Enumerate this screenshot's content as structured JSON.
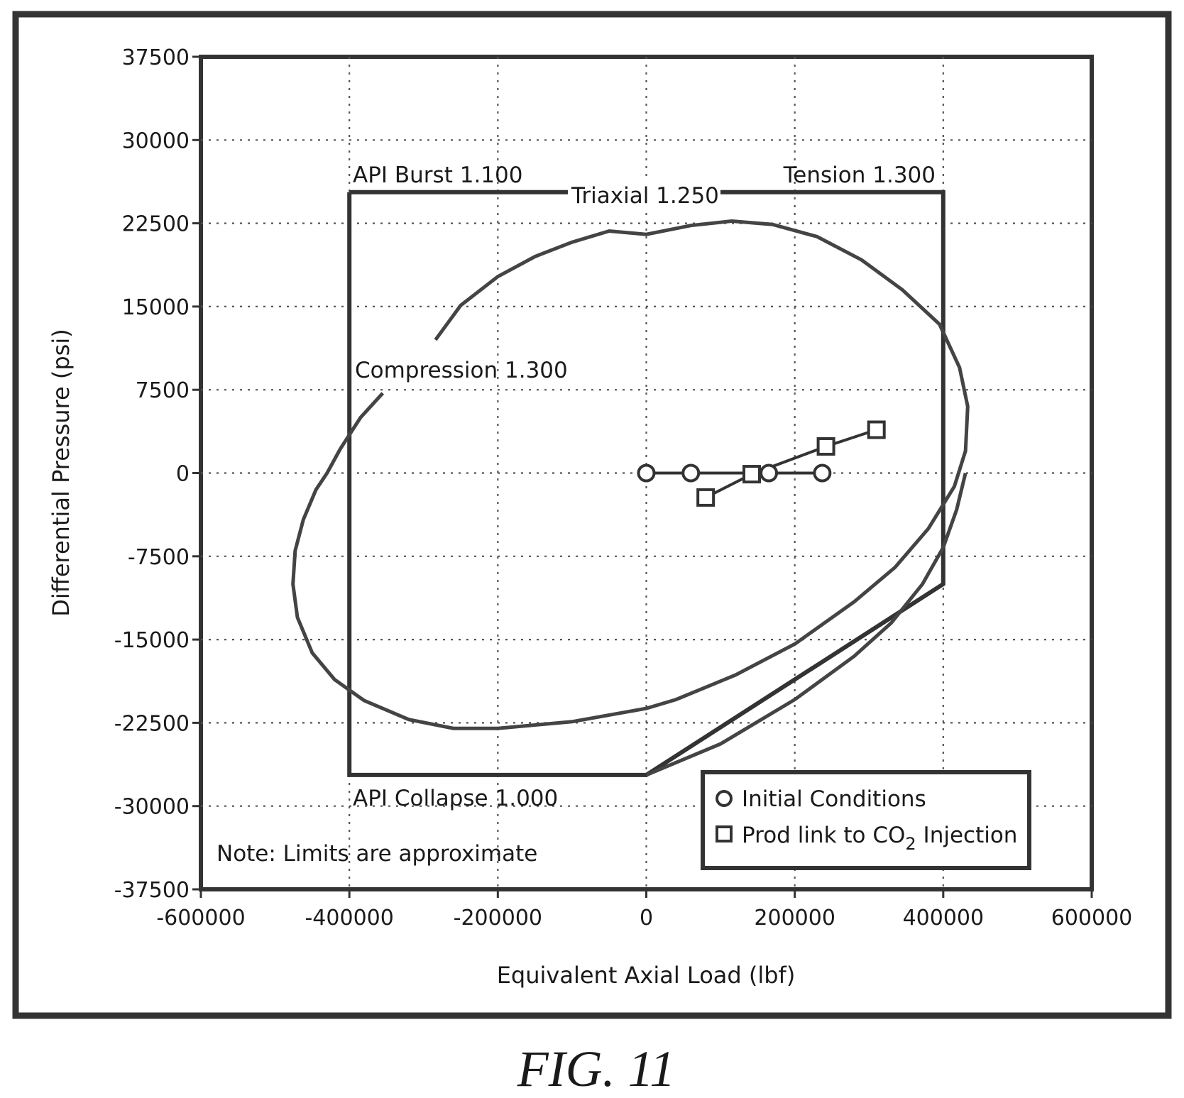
{
  "figure_label": "FIG. 11",
  "chart_data": {
    "type": "line",
    "xlabel": "Equivalent Axial Load (lbf)",
    "ylabel": "Differential Pressure (psi)",
    "xlim": [
      -600000,
      600000
    ],
    "ylim": [
      -37500,
      37500
    ],
    "xticks": [
      -600000,
      -400000,
      -200000,
      0,
      200000,
      400000,
      600000
    ],
    "yticks": [
      37500,
      30000,
      22500,
      15000,
      7500,
      0,
      -7500,
      -15000,
      -22500,
      -30000,
      -37500
    ],
    "grid": true,
    "note": "Note: Limits are approximate",
    "limit_labels": {
      "burst": "API Burst 1.100",
      "triaxial": "Triaxial 1.250",
      "tension": "Tension 1.300",
      "compression": "Compression 1.300",
      "collapse": "API Collapse 1.000"
    },
    "api_envelope": [
      [
        -400000,
        25300
      ],
      [
        400000,
        25300
      ],
      [
        400000,
        -10000
      ],
      [
        0,
        -27200
      ],
      [
        -400000,
        -27200
      ],
      [
        -400000,
        25300
      ]
    ],
    "triaxial_ellipse": [
      [
        -284000,
        12000
      ],
      [
        -250000,
        15100
      ],
      [
        -200000,
        17700
      ],
      [
        -150000,
        19500
      ],
      [
        -100000,
        20800
      ],
      [
        -50000,
        21800
      ],
      [
        0,
        21500
      ],
      [
        60000,
        22300
      ],
      [
        115000,
        22700
      ],
      [
        170000,
        22400
      ],
      [
        230000,
        21300
      ],
      [
        290000,
        19200
      ],
      [
        345000,
        16500
      ],
      [
        395000,
        13400
      ],
      [
        422000,
        9500
      ],
      [
        433000,
        6000
      ],
      [
        430000,
        2000
      ],
      [
        415000,
        -1200
      ],
      [
        380000,
        -5000
      ],
      [
        335000,
        -8500
      ],
      [
        280000,
        -11600
      ],
      [
        200000,
        -15400
      ],
      [
        120000,
        -18200
      ],
      [
        40000,
        -20400
      ],
      [
        0,
        -21200
      ],
      [
        -100000,
        -22400
      ],
      [
        -200000,
        -23000
      ],
      [
        -260000,
        -23000
      ],
      [
        -320000,
        -22200
      ],
      [
        -380000,
        -20500
      ],
      [
        -420000,
        -18600
      ],
      [
        -450000,
        -16200
      ],
      [
        -470000,
        -13000
      ],
      [
        -476000,
        -10000
      ],
      [
        -473000,
        -7000
      ],
      [
        -462000,
        -4200
      ],
      [
        -445000,
        -1500
      ],
      [
        -430000,
        0
      ],
      [
        -412000,
        2200
      ],
      [
        -385000,
        5000
      ],
      [
        -355000,
        7200
      ]
    ],
    "collapse_curve": [
      [
        0,
        -27200
      ],
      [
        100000,
        -24400
      ],
      [
        200000,
        -20400
      ],
      [
        280000,
        -16500
      ],
      [
        330000,
        -13500
      ],
      [
        372000,
        -10000
      ],
      [
        400000,
        -6700
      ],
      [
        418000,
        -3300
      ],
      [
        430000,
        0
      ]
    ],
    "series": [
      {
        "name": "Initial Conditions",
        "marker": "circle",
        "points": [
          [
            0,
            0
          ],
          [
            60000,
            0
          ],
          [
            165000,
            0
          ],
          [
            237000,
            0
          ]
        ]
      },
      {
        "name": "Prod link to CO2 Injection",
        "marker": "square",
        "points": [
          [
            80000,
            -2200
          ],
          [
            142000,
            -100
          ],
          [
            242000,
            2400
          ],
          [
            310000,
            3900
          ]
        ]
      }
    ],
    "legend": {
      "position": "bottom-right",
      "entry1": "Initial Conditions",
      "entry2_prefix": "Prod link to CO",
      "entry2_sub": "2",
      "entry2_suffix": " Injection"
    }
  }
}
